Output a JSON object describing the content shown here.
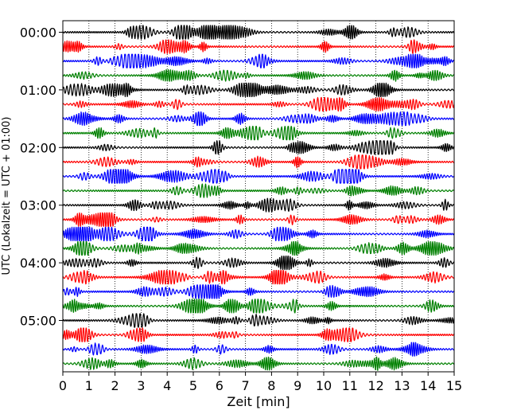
{
  "chart_data": {
    "type": "line",
    "title": "",
    "xlabel": "Zeit  [min]",
    "ylabel": "UTC (Lokalzeit = UTC + 01:00)",
    "xlim": [
      0,
      15
    ],
    "x_ticks": [
      0,
      1,
      2,
      3,
      4,
      5,
      6,
      7,
      8,
      9,
      10,
      11,
      12,
      13,
      14,
      15
    ],
    "x_tick_labels": [
      "0",
      "1",
      "2",
      "3",
      "4",
      "5",
      "6",
      "7",
      "8",
      "9",
      "10",
      "11",
      "12",
      "13",
      "14",
      "15"
    ],
    "y_tick_labels": [
      "00:00",
      "01:00",
      "02:00",
      "03:00",
      "04:00",
      "05:00"
    ],
    "grid": "vertical dotted at each minute",
    "trace_minutes": 15,
    "trace_count": 24,
    "trace_colors": [
      "#000000",
      "#ff0000",
      "#0000ff",
      "#008000"
    ],
    "trace_start_times": [
      "00:00",
      "00:15",
      "00:30",
      "00:45",
      "01:00",
      "01:15",
      "01:30",
      "01:45",
      "02:00",
      "02:15",
      "02:30",
      "02:45",
      "03:00",
      "03:15",
      "03:30",
      "03:45",
      "04:00",
      "04:15",
      "04:30",
      "04:45",
      "05:00",
      "05:15",
      "05:30",
      "05:45"
    ],
    "legend": "none"
  }
}
